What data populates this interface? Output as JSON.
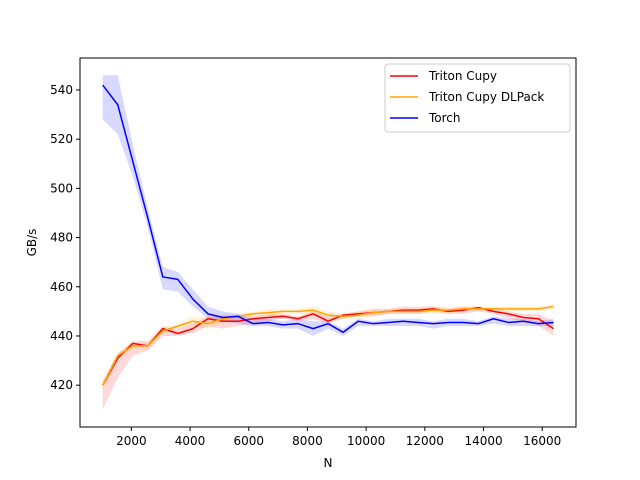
{
  "chart_data": {
    "type": "line",
    "title": "",
    "xlabel": "N",
    "ylabel": "GB/s",
    "xlim": [
      250,
      17150
    ],
    "ylim": [
      403,
      553
    ],
    "xticks": [
      2000,
      4000,
      6000,
      8000,
      10000,
      12000,
      14000,
      16000
    ],
    "yticks": [
      420,
      440,
      460,
      480,
      500,
      520,
      540
    ],
    "grid": false,
    "legend_position": "upper-right",
    "x": [
      1024,
      1536,
      2048,
      2560,
      3072,
      3584,
      4096,
      4608,
      5120,
      5632,
      6144,
      6656,
      7168,
      7680,
      8192,
      8704,
      9216,
      9728,
      10240,
      10752,
      11264,
      11776,
      12288,
      12800,
      13312,
      13824,
      14336,
      14848,
      15360,
      15872,
      16384
    ],
    "series": [
      {
        "name": "Triton Cupy",
        "color": "#ff0000",
        "values": [
          420,
          431,
          437,
          436,
          443,
          441,
          443,
          447,
          446,
          446,
          447,
          447.5,
          448,
          447,
          449,
          446,
          448.5,
          449,
          449.5,
          450,
          450.5,
          450.5,
          451,
          450,
          450.5,
          451.5,
          450,
          449,
          447.5,
          447,
          443
        ],
        "band_lower": [
          410,
          423,
          432,
          434,
          440,
          440,
          441,
          444,
          443,
          444,
          445,
          446,
          447,
          446,
          447,
          445,
          447,
          448,
          448,
          449,
          449,
          449,
          450,
          449,
          449,
          450,
          449,
          447,
          446,
          444,
          440
        ],
        "band_upper": [
          422,
          433,
          438,
          438,
          444,
          443,
          445,
          448,
          448,
          448,
          448,
          449,
          449,
          448,
          450,
          448,
          449,
          450,
          451,
          451,
          452,
          452,
          452,
          451,
          452,
          452,
          451,
          450,
          449,
          449,
          446
        ]
      },
      {
        "name": "Triton Cupy DLPack",
        "color": "#ffa500",
        "values": [
          420,
          432,
          436,
          436,
          442,
          444,
          446,
          445,
          447,
          448,
          449,
          449.5,
          450,
          450,
          450.5,
          448.5,
          448,
          448.5,
          449.5,
          450,
          450,
          450,
          450.5,
          450.5,
          451,
          451,
          451,
          451,
          451,
          451,
          452
        ],
        "band_lower": [
          418,
          430,
          435,
          435,
          441,
          443,
          444,
          443,
          445,
          447,
          448,
          448,
          449,
          449,
          449,
          447,
          447,
          447,
          448,
          449,
          449,
          449,
          449,
          449,
          450,
          450,
          450,
          450,
          450,
          450,
          451
        ],
        "band_upper": [
          421,
          433,
          437,
          437,
          443,
          445,
          448,
          447,
          449,
          449,
          450,
          451,
          451,
          451,
          452,
          450,
          449,
          450,
          451,
          451,
          451,
          451,
          452,
          452,
          452,
          452,
          452,
          452,
          452,
          452,
          453
        ]
      },
      {
        "name": "Torch",
        "color": "#0000ff",
        "values": [
          542,
          534,
          511,
          488,
          464,
          463,
          455,
          449,
          447.5,
          448,
          445,
          445.5,
          444.5,
          445,
          443,
          445,
          441.5,
          446,
          445,
          445.5,
          446,
          445.5,
          445,
          445.5,
          445.5,
          445,
          447,
          445.5,
          446,
          445,
          445.5
        ],
        "band_lower": [
          528,
          522,
          505,
          484,
          459,
          458,
          452,
          447,
          446,
          445,
          444,
          444,
          443,
          443,
          440,
          443,
          440,
          444,
          444,
          444,
          444,
          444,
          443,
          444,
          444,
          444,
          445,
          444,
          444,
          444,
          444
        ],
        "band_upper": [
          546,
          546,
          518,
          492,
          468,
          466,
          459,
          452,
          450,
          449,
          447,
          447,
          446,
          447,
          446,
          446,
          443,
          447,
          446,
          447,
          447,
          447,
          446,
          447,
          447,
          446,
          448,
          447,
          447,
          446,
          447
        ]
      }
    ]
  }
}
